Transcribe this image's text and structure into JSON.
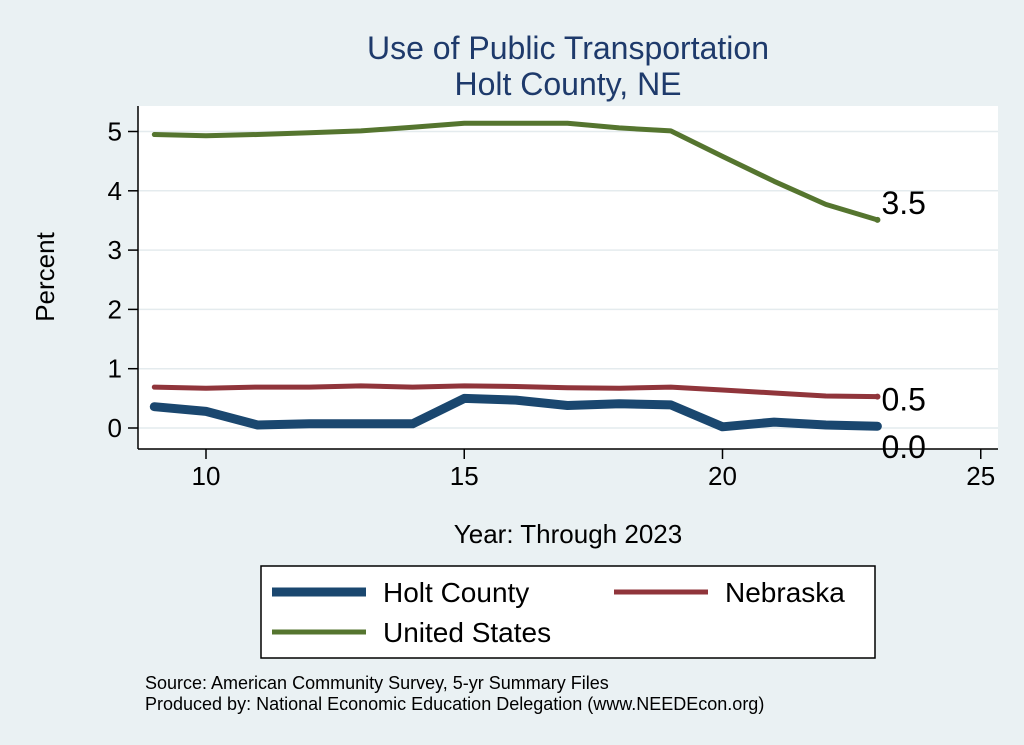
{
  "chart_data": {
    "type": "line",
    "title": [
      "Use of Public Transportation",
      "Holt County, NE"
    ],
    "xlabel": "Year: Through 2023",
    "ylabel": "Percent",
    "xlim": [
      9,
      25
    ],
    "ylim": [
      0,
      5.2
    ],
    "x_ticks": [
      10,
      15,
      20,
      25
    ],
    "y_ticks": [
      0,
      1,
      2,
      3,
      4,
      5
    ],
    "grid": "horizontal",
    "legend_position": "bottom",
    "x": [
      9,
      10,
      11,
      12,
      13,
      14,
      15,
      16,
      17,
      18,
      19,
      20,
      21,
      22,
      23
    ],
    "series": [
      {
        "name": "Holt County",
        "color": "#1a476f",
        "values": [
          0.36,
          0.28,
          0.05,
          0.07,
          0.07,
          0.07,
          0.5,
          0.47,
          0.38,
          0.41,
          0.39,
          0.02,
          0.1,
          0.05,
          0.03
        ],
        "end_label": "0.0"
      },
      {
        "name": "Nebraska",
        "color": "#90353b",
        "values": [
          0.69,
          0.67,
          0.69,
          0.69,
          0.71,
          0.69,
          0.71,
          0.7,
          0.68,
          0.67,
          0.69,
          0.64,
          0.59,
          0.54,
          0.53
        ],
        "end_label": "0.5"
      },
      {
        "name": "United States",
        "color": "#55752f",
        "values": [
          4.95,
          4.93,
          4.95,
          4.98,
          5.01,
          5.07,
          5.14,
          5.14,
          5.14,
          5.06,
          5.01,
          4.58,
          4.16,
          3.77,
          3.51
        ],
        "end_label": "3.5"
      }
    ]
  },
  "notes": {
    "source": "Source: American Community Survey, 5-yr Summary Files",
    "produced": "Produced by: National Economic Education Delegation (www.NEEDEcon.org)"
  }
}
